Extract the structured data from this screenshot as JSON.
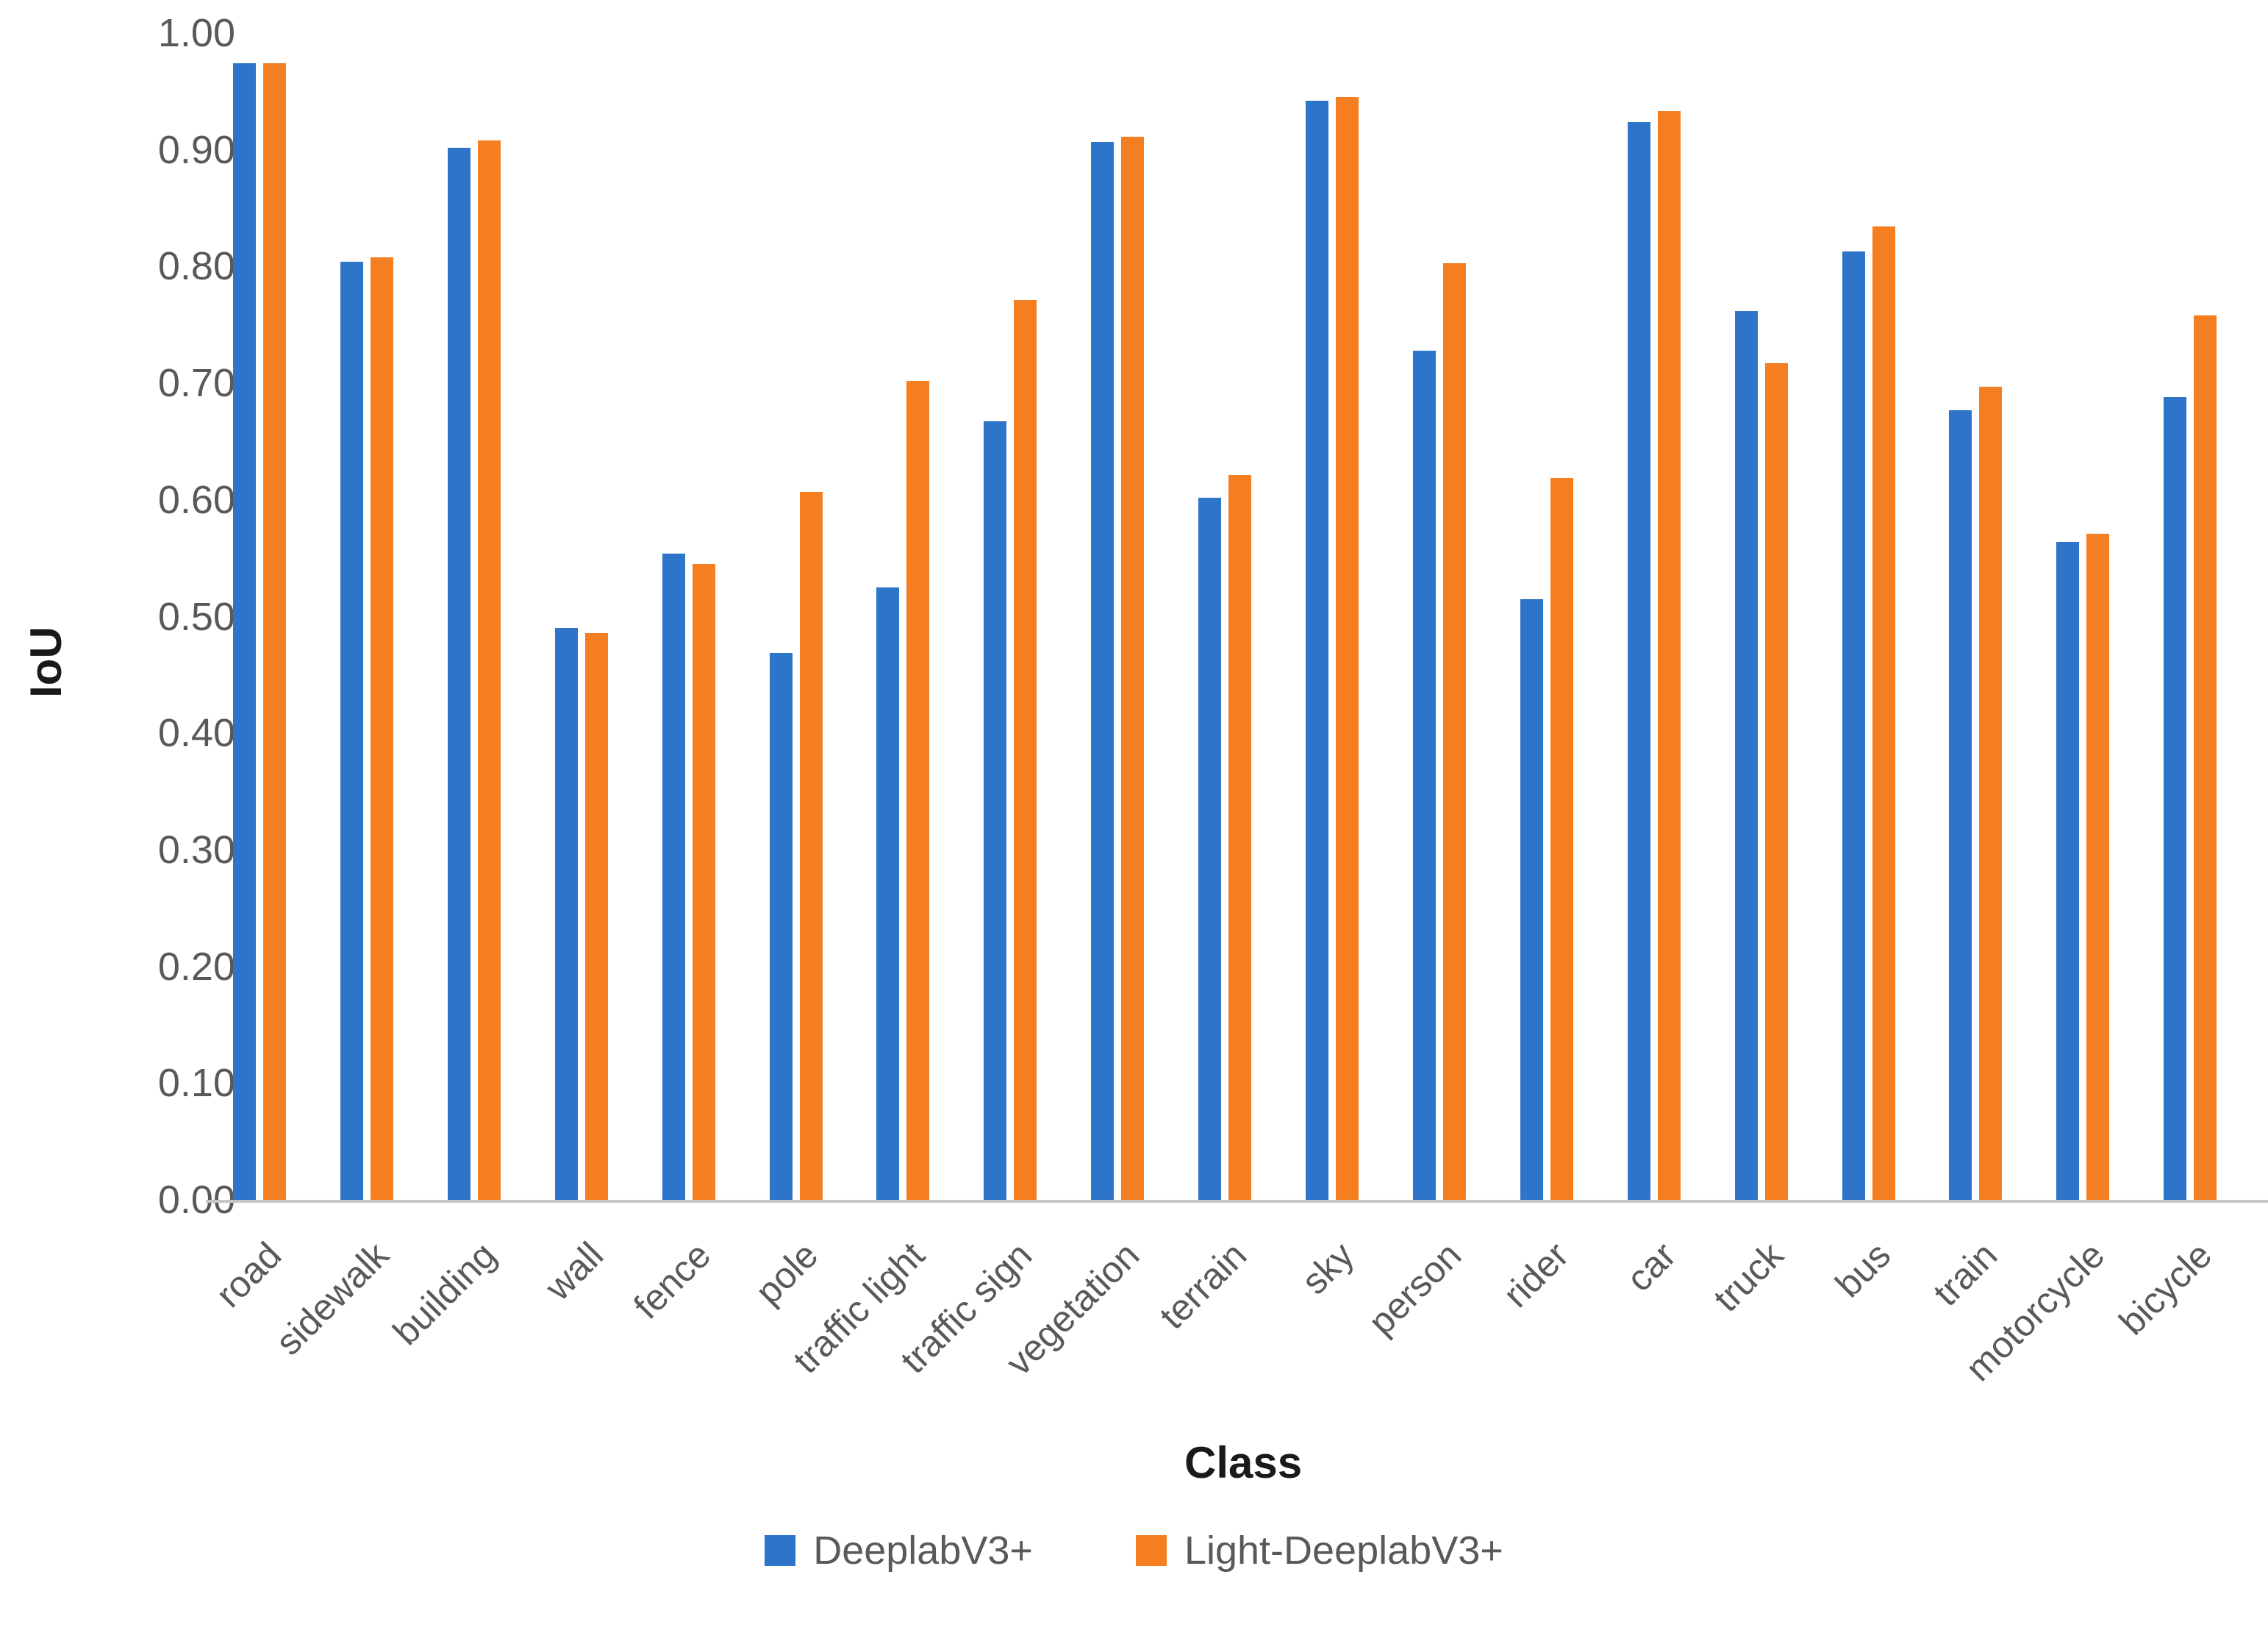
{
  "chart_data": {
    "type": "bar",
    "title": "",
    "xlabel": "Class",
    "ylabel": "IoU",
    "ylim": [
      0.0,
      1.0
    ],
    "ytick_step": 0.1,
    "ytick_labels": [
      "0.00",
      "0.10",
      "0.20",
      "0.30",
      "0.40",
      "0.50",
      "0.60",
      "0.70",
      "0.80",
      "0.90",
      "1.00"
    ],
    "grid": false,
    "legend_position": "bottom",
    "categories": [
      "road",
      "sidewalk",
      "building",
      "wall",
      "fence",
      "pole",
      "traffic light",
      "traffic sign",
      "vegetation",
      "terrain",
      "sky",
      "person",
      "rider",
      "car",
      "truck",
      "bus",
      "train",
      "motorcycle",
      "bicycle"
    ],
    "series": [
      {
        "name": "DeeplabV3+",
        "color": "#2E74C9",
        "values": [
          0.974,
          0.804,
          0.902,
          0.49,
          0.554,
          0.469,
          0.525,
          0.667,
          0.907,
          0.602,
          0.942,
          0.728,
          0.515,
          0.924,
          0.762,
          0.813,
          0.677,
          0.564,
          0.688
        ]
      },
      {
        "name": "Light-DeeplabV3+",
        "color": "#F57E20",
        "values": [
          0.974,
          0.808,
          0.908,
          0.486,
          0.545,
          0.607,
          0.702,
          0.771,
          0.911,
          0.621,
          0.945,
          0.803,
          0.619,
          0.933,
          0.717,
          0.834,
          0.697,
          0.571,
          0.758
        ]
      }
    ]
  },
  "colors": {
    "axis_line": "#C6C6C6",
    "tick_text": "#595959",
    "title_text": "#1A1A1A"
  }
}
